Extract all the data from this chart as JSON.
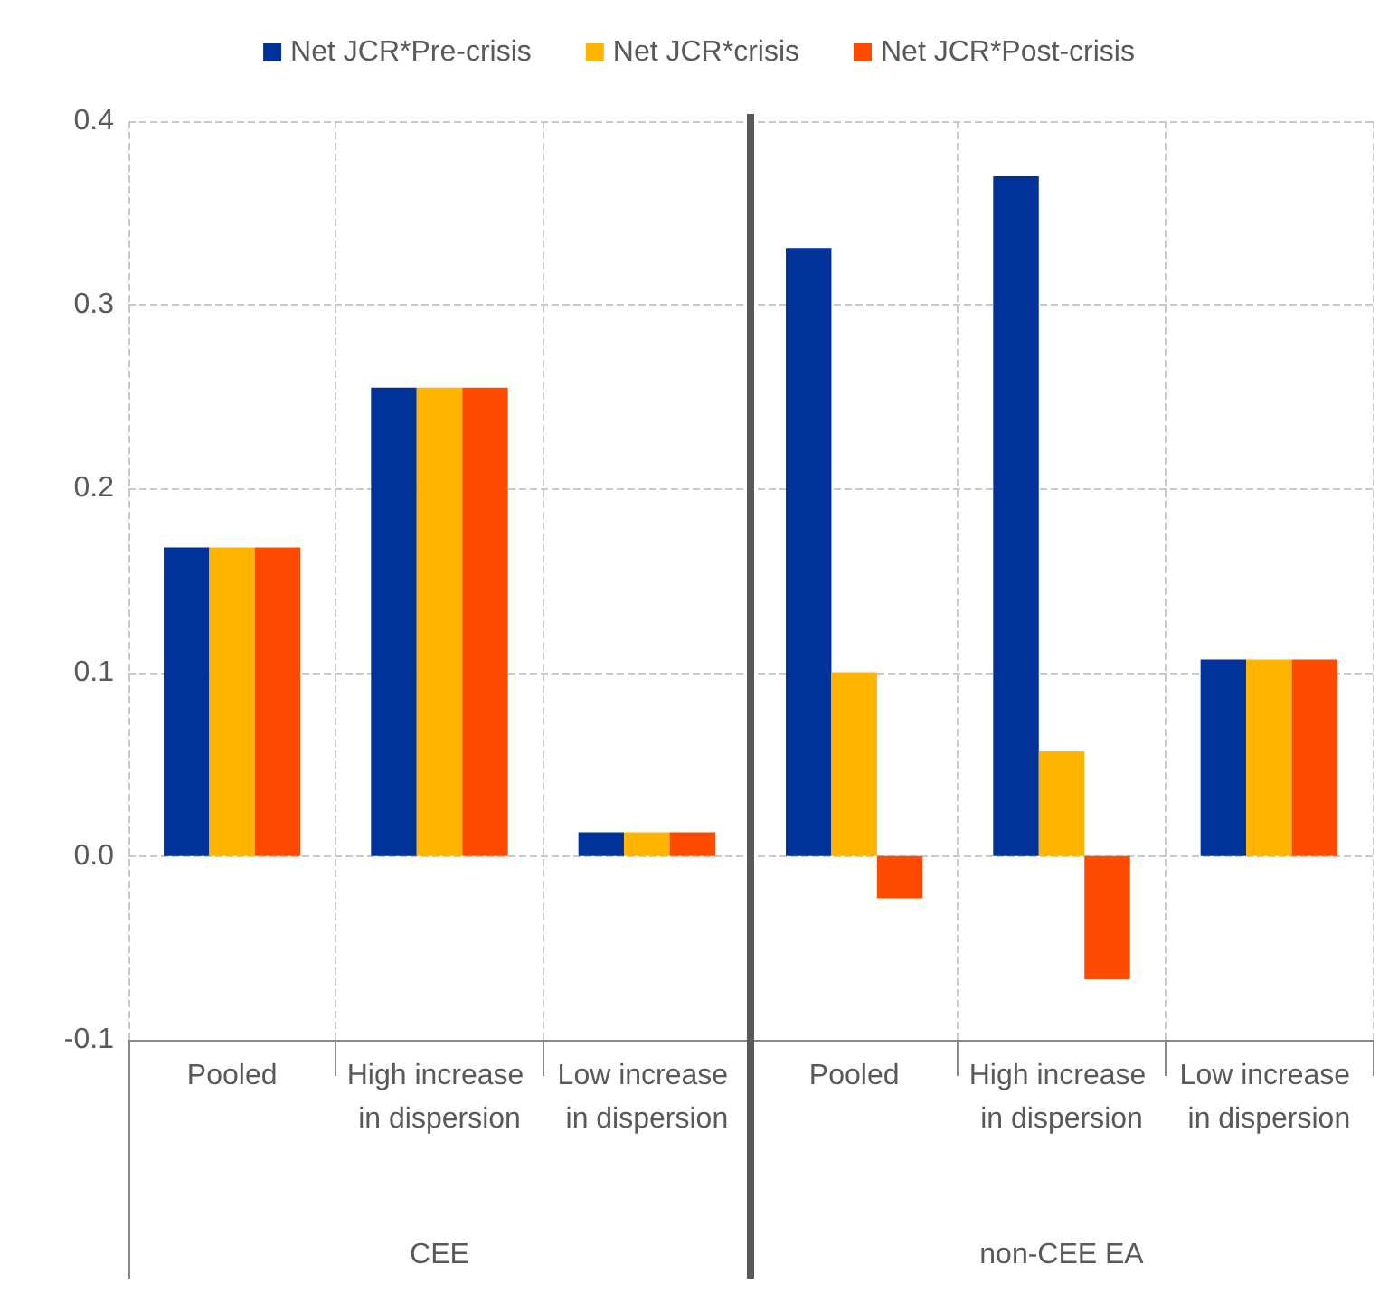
{
  "chart_data": {
    "type": "bar",
    "categories": [
      "Pooled",
      "High increase in dispersion",
      "Low increase in dispersion",
      "Pooled",
      "High increase in dispersion",
      "Low increase in dispersion"
    ],
    "series": [
      {
        "name": "Net JCR*Pre-crisis",
        "color": "#003299",
        "values": [
          0.168,
          0.255,
          0.013,
          0.331,
          0.37,
          0.107
        ]
      },
      {
        "name": "Net JCR*crisis",
        "color": "#ffb400",
        "values": [
          0.168,
          0.255,
          0.013,
          0.1,
          0.057,
          0.107
        ]
      },
      {
        "name": "Net JCR*Post-crisis",
        "color": "#ff4b00",
        "values": [
          0.168,
          0.255,
          0.013,
          -0.023,
          -0.067,
          0.107
        ]
      }
    ],
    "annotations": [
      "CEE",
      "non-CEE EA"
    ],
    "ylim": [
      -0.1,
      0.4
    ],
    "yticks": [
      -0.1,
      {
        "value": 0,
        "label": "0.0"
      },
      0.1,
      0.2,
      0.3,
      0.4
    ],
    "grid": true,
    "legend": "top"
  }
}
